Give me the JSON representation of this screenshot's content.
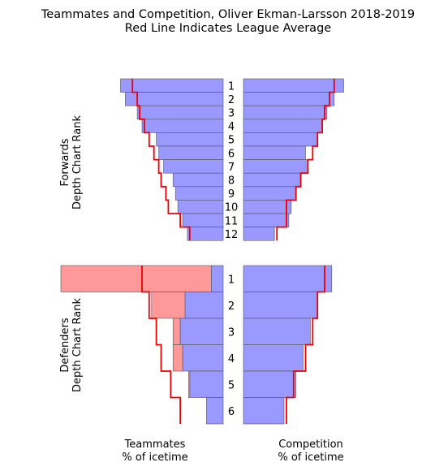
{
  "chart_data": {
    "type": "bar",
    "title": "Teammates and Competition, Oliver Ekman-Larsson 2018-2019",
    "subtitle": "Red Line Indicates League Average",
    "teammates_label": [
      "Teammates",
      "% of icetime"
    ],
    "competition_label": [
      "Competition",
      "% of icetime"
    ],
    "colors": {
      "player": "#9999ff",
      "excess": "#ff9999",
      "average": "#ee0000"
    },
    "forwards": {
      "ylabel": [
        "Forwards",
        "Depth Chart Rank"
      ],
      "ranks": [
        "1",
        "2",
        "3",
        "4",
        "5",
        "6",
        "7",
        "8",
        "9",
        "10",
        "11",
        "12"
      ],
      "teammates": [
        43,
        41,
        36,
        34,
        28,
        27,
        25,
        21,
        20,
        19,
        17,
        15
      ],
      "teammates_avg": [
        38,
        36,
        35,
        33,
        31,
        29,
        27,
        26,
        24,
        23,
        18,
        14
      ],
      "competition": [
        42,
        38,
        35,
        33,
        31,
        26,
        27,
        24,
        22,
        20,
        19,
        13
      ],
      "competition_avg": [
        38,
        36,
        34,
        33,
        31,
        29,
        27,
        24,
        22,
        18,
        18,
        14
      ]
    },
    "defenders": {
      "ylabel": [
        "Defenders",
        "Depth Chart Rank"
      ],
      "ranks": [
        "1",
        "2",
        "3",
        "4",
        "5",
        "6"
      ],
      "teammates": [
        5,
        16,
        18,
        17,
        14,
        7
      ],
      "teammates_excess": [
        63,
        14,
        3,
        4,
        0.5,
        0
      ],
      "teammates_avg": [
        34,
        31,
        28,
        26,
        22,
        18
      ],
      "competition": [
        37,
        31,
        28,
        25,
        22,
        17
      ],
      "competition_avg": [
        34,
        31,
        29,
        26,
        21,
        18
      ]
    },
    "xlim": [
      0,
      68
    ]
  }
}
